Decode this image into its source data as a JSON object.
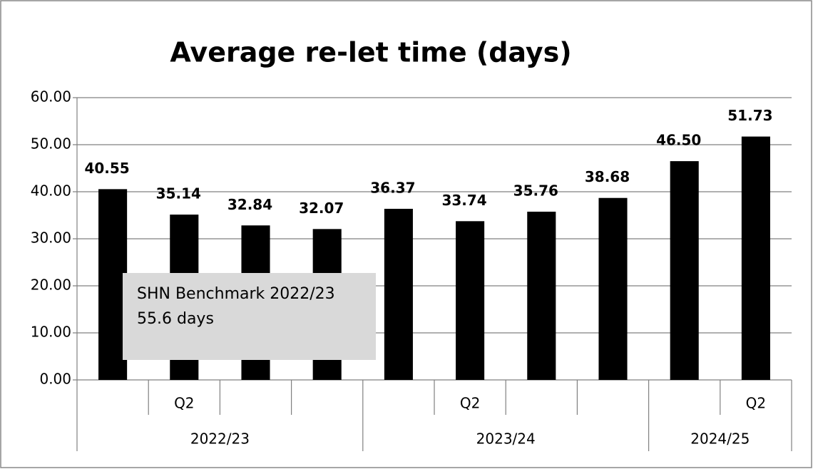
{
  "chart_data": {
    "type": "bar",
    "title": "Average re-let time (days)",
    "groups": [
      {
        "name": "2022/23",
        "categories": [
          null,
          "Q2",
          null,
          null
        ]
      },
      {
        "name": "2023/24",
        "categories": [
          null,
          "Q2",
          null,
          null
        ]
      },
      {
        "name": "2024/25",
        "categories": [
          null,
          "Q2"
        ]
      }
    ],
    "values": [
      40.55,
      35.14,
      32.84,
      32.07,
      36.37,
      33.74,
      35.76,
      38.68,
      46.5,
      51.73
    ],
    "value_labels": [
      "40.55",
      "35.14",
      "32.84",
      "32.07",
      "36.37",
      "33.74",
      "35.76",
      "38.68",
      "46.50",
      "51.73"
    ],
    "color": "#000000",
    "ylim": [
      0,
      60
    ],
    "yticks": [
      {
        "value": 0,
        "label": "0.00"
      },
      {
        "value": 10,
        "label": "10.00"
      },
      {
        "value": 20,
        "label": "20.00"
      },
      {
        "value": 30,
        "label": "30.00"
      },
      {
        "value": 40,
        "label": "40.00"
      },
      {
        "value": 50,
        "label": "50.00"
      },
      {
        "value": 60,
        "label": "60.00"
      }
    ],
    "grid": true,
    "annotation": [
      "SHN Benchmark 2022/23",
      "55.6 days"
    ]
  }
}
